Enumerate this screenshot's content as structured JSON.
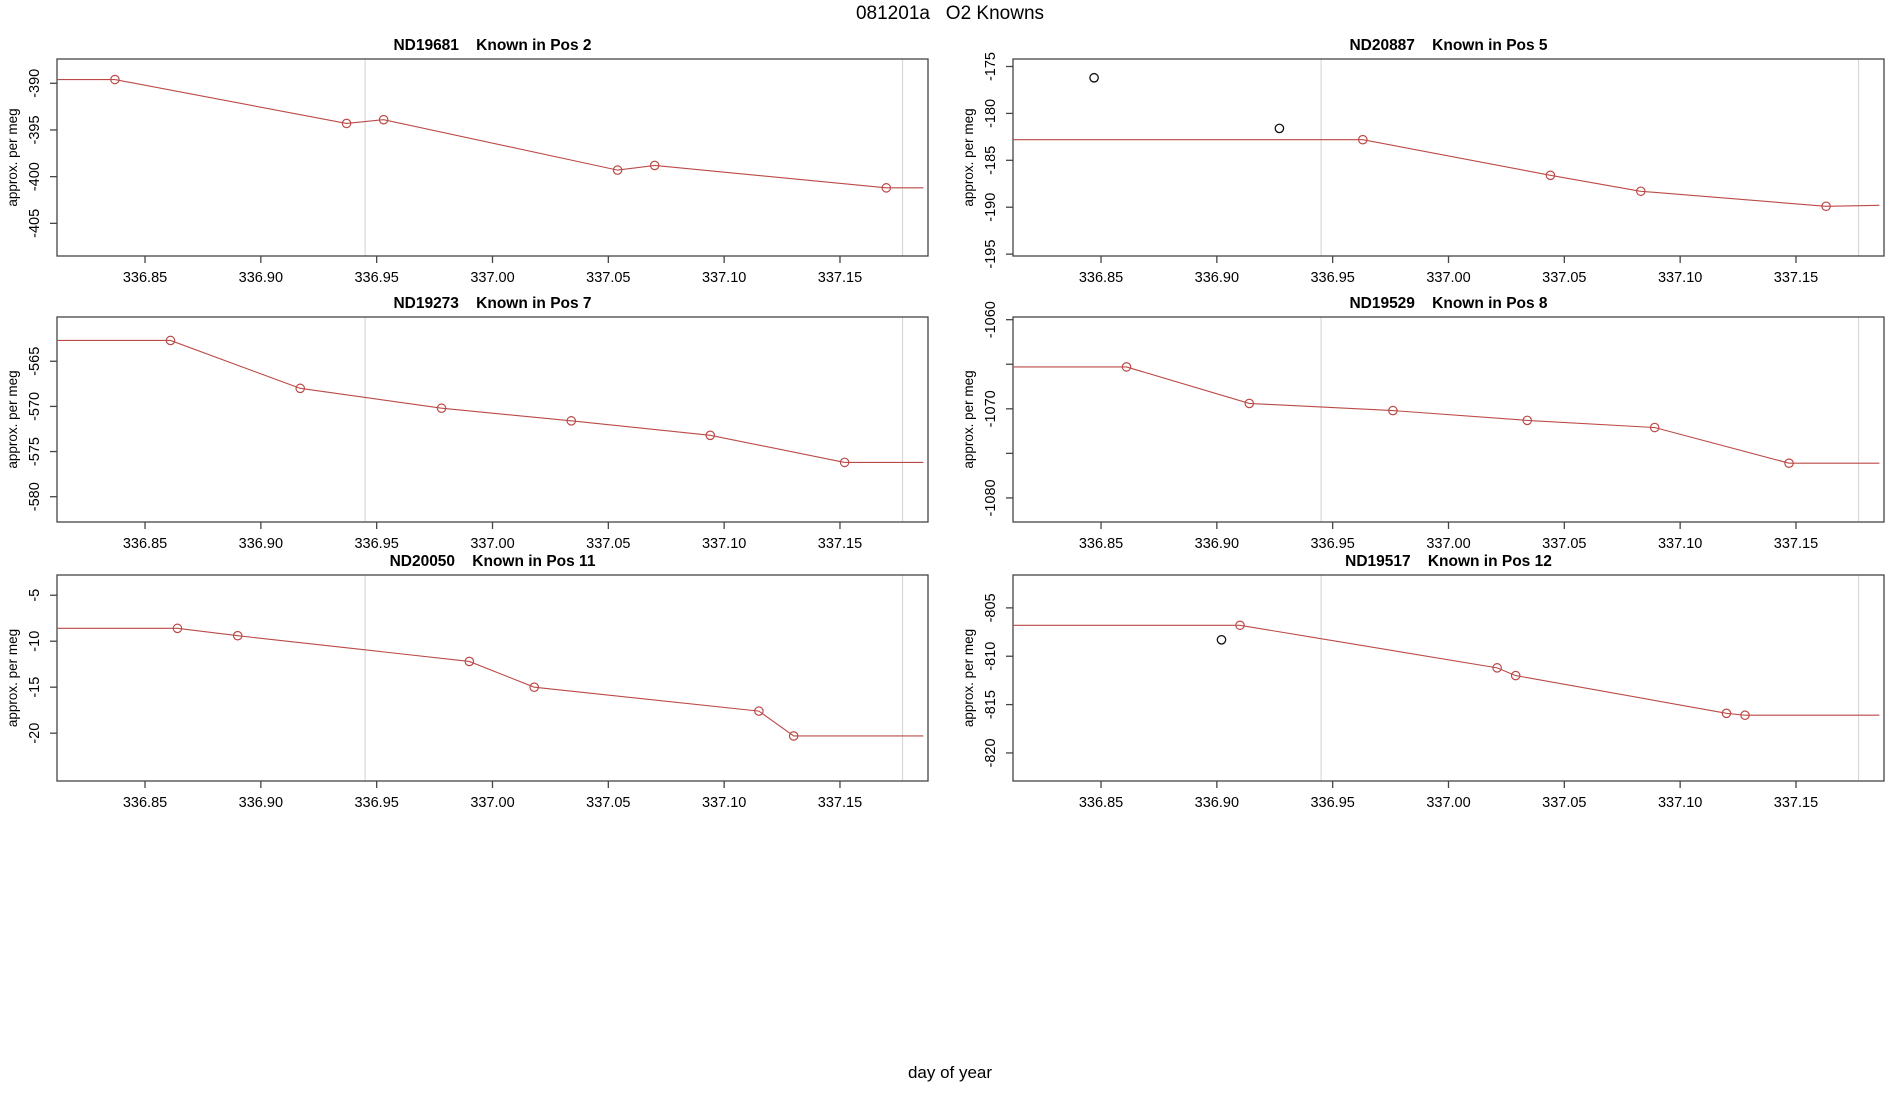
{
  "page": {
    "title": "081201a   O2 Knowns",
    "xlabel": "day of year"
  },
  "colors": {
    "series": "#bb4a47",
    "outlier": "#111111",
    "reference_line": "#d8d8d8",
    "axis": "#454545",
    "text": "#000000"
  },
  "chart_data": [
    {
      "type": "line",
      "title": "ND19681    Known in Pos 2",
      "ylabel": "approx. per meg",
      "xlim": [
        336.812,
        337.188
      ],
      "ylim": [
        -408.5,
        -387.4
      ],
      "xticks": {
        "values": [
          336.85,
          336.9,
          336.95,
          337.0,
          337.05,
          337.1,
          337.15
        ],
        "labels": [
          "336.85",
          "336.90",
          "336.95",
          "337.00",
          "337.05",
          "337.10",
          "337.15"
        ]
      },
      "yticks": {
        "values": [
          -390,
          -395,
          -400,
          -405
        ],
        "labels": [
          "-390",
          "-395",
          "-400",
          "-405"
        ]
      },
      "vlines": [
        336.945,
        337.177
      ],
      "line": [
        [
          336.812,
          -389.6
        ],
        [
          336.837,
          -389.6
        ],
        [
          336.937,
          -394.3
        ],
        [
          336.953,
          -393.9
        ],
        [
          337.054,
          -399.3
        ],
        [
          337.07,
          -398.8
        ],
        [
          337.17,
          -401.2
        ],
        [
          337.186,
          -401.2
        ]
      ],
      "markers": [
        [
          336.837,
          -389.6
        ],
        [
          336.937,
          -394.3
        ],
        [
          336.953,
          -393.9
        ],
        [
          337.054,
          -399.3
        ],
        [
          337.07,
          -398.8
        ],
        [
          337.17,
          -401.2
        ]
      ],
      "outliers": []
    },
    {
      "type": "line",
      "title": "ND20887    Known in Pos 5",
      "ylabel": "approx. per meg",
      "xlim": [
        336.812,
        337.188
      ],
      "ylim": [
        -195.2,
        -174.2
      ],
      "xticks": {
        "values": [
          336.85,
          336.9,
          336.95,
          337.0,
          337.05,
          337.1,
          337.15
        ],
        "labels": [
          "336.85",
          "336.90",
          "336.95",
          "337.00",
          "337.05",
          "337.10",
          "337.15"
        ]
      },
      "yticks": {
        "values": [
          -175,
          -180,
          -185,
          -190,
          -195
        ],
        "labels": [
          "-175",
          "-180",
          "-185",
          "-190",
          "-195"
        ]
      },
      "vlines": [
        336.945,
        337.177
      ],
      "line": [
        [
          336.812,
          -182.8
        ],
        [
          336.963,
          -182.8
        ],
        [
          337.044,
          -186.6
        ],
        [
          337.083,
          -188.3
        ],
        [
          337.163,
          -189.9
        ],
        [
          337.186,
          -189.8
        ]
      ],
      "markers": [
        [
          336.963,
          -182.8
        ],
        [
          337.044,
          -186.6
        ],
        [
          337.083,
          -188.3
        ],
        [
          337.163,
          -189.9
        ]
      ],
      "outliers": [
        [
          336.847,
          -176.2
        ],
        [
          336.927,
          -181.6
        ]
      ]
    },
    {
      "type": "line",
      "title": "ND19273    Known in Pos 7",
      "ylabel": "approx. per meg",
      "xlim": [
        336.812,
        337.188
      ],
      "ylim": [
        -582.8,
        -560.1
      ],
      "xticks": {
        "values": [
          336.85,
          336.9,
          336.95,
          337.0,
          337.05,
          337.1,
          337.15
        ],
        "labels": [
          "336.85",
          "336.90",
          "336.95",
          "337.00",
          "337.05",
          "337.10",
          "337.15"
        ]
      },
      "yticks": {
        "values": [
          -565,
          -570,
          -575,
          -580
        ],
        "labels": [
          "-565",
          "-570",
          "-575",
          "-580"
        ]
      },
      "vlines": [
        336.945,
        337.177
      ],
      "line": [
        [
          336.812,
          -562.7
        ],
        [
          336.861,
          -562.7
        ],
        [
          336.917,
          -568.0
        ],
        [
          336.978,
          -570.2
        ],
        [
          337.034,
          -571.6
        ],
        [
          337.094,
          -573.2
        ],
        [
          337.152,
          -576.2
        ],
        [
          337.186,
          -576.2
        ]
      ],
      "markers": [
        [
          336.861,
          -562.7
        ],
        [
          336.917,
          -568.0
        ],
        [
          336.978,
          -570.2
        ],
        [
          337.034,
          -571.6
        ],
        [
          337.094,
          -573.2
        ],
        [
          337.152,
          -576.2
        ]
      ],
      "outliers": []
    },
    {
      "type": "line",
      "title": "ND19529    Known in Pos 8",
      "ylabel": "approx. per meg",
      "xlim": [
        336.812,
        337.188
      ],
      "ylim": [
        -1082.7,
        -1059.7
      ],
      "xticks": {
        "values": [
          336.85,
          336.9,
          336.95,
          337.0,
          337.05,
          337.1,
          337.15
        ],
        "labels": [
          "336.85",
          "336.90",
          "336.95",
          "337.00",
          "337.05",
          "337.10",
          "337.15"
        ]
      },
      "yticks": {
        "values": [
          -1060,
          -1065,
          -1070,
          -1075,
          -1080
        ],
        "labels": [
          "-1060",
          "",
          "-1070",
          "",
          "-1080"
        ]
      },
      "vlines": [
        336.945,
        337.177
      ],
      "line": [
        [
          336.812,
          -1065.3
        ],
        [
          336.861,
          -1065.3
        ],
        [
          336.914,
          -1069.4
        ],
        [
          336.976,
          -1070.2
        ],
        [
          337.034,
          -1071.3
        ],
        [
          337.089,
          -1072.1
        ],
        [
          337.147,
          -1076.1
        ],
        [
          337.186,
          -1076.1
        ]
      ],
      "markers": [
        [
          336.861,
          -1065.3
        ],
        [
          336.914,
          -1069.4
        ],
        [
          336.976,
          -1070.2
        ],
        [
          337.034,
          -1071.3
        ],
        [
          337.089,
          -1072.1
        ],
        [
          337.147,
          -1076.1
        ]
      ],
      "outliers": []
    },
    {
      "type": "line",
      "title": "ND20050    Known in Pos 11",
      "ylabel": "approx. per meg",
      "xlim": [
        336.812,
        337.188
      ],
      "ylim": [
        -25.2,
        -2.8
      ],
      "xticks": {
        "values": [
          336.85,
          336.9,
          336.95,
          337.0,
          337.05,
          337.1,
          337.15
        ],
        "labels": [
          "336.85",
          "336.90",
          "336.95",
          "337.00",
          "337.05",
          "337.10",
          "337.15"
        ]
      },
      "yticks": {
        "values": [
          -5,
          -10,
          -15,
          -20
        ],
        "labels": [
          "-5",
          "-10",
          "-15",
          "-20"
        ]
      },
      "vlines": [
        336.945,
        337.177
      ],
      "line": [
        [
          336.812,
          -8.6
        ],
        [
          336.864,
          -8.6
        ],
        [
          336.89,
          -9.4
        ],
        [
          336.99,
          -12.2
        ],
        [
          337.018,
          -15.0
        ],
        [
          337.115,
          -17.6
        ],
        [
          337.13,
          -20.3
        ],
        [
          337.186,
          -20.3
        ]
      ],
      "markers": [
        [
          336.864,
          -8.6
        ],
        [
          336.89,
          -9.4
        ],
        [
          336.99,
          -12.2
        ],
        [
          337.018,
          -15.0
        ],
        [
          337.115,
          -17.6
        ],
        [
          337.13,
          -20.3
        ]
      ],
      "outliers": []
    },
    {
      "type": "line",
      "title": "ND19517    Known in Pos 12",
      "ylabel": "approx. per meg",
      "xlim": [
        336.812,
        337.188
      ],
      "ylim": [
        -822.9,
        -801.6
      ],
      "xticks": {
        "values": [
          336.85,
          336.9,
          336.95,
          337.0,
          337.05,
          337.1,
          337.15
        ],
        "labels": [
          "336.85",
          "336.90",
          "336.95",
          "337.00",
          "337.05",
          "337.10",
          "337.15"
        ]
      },
      "yticks": {
        "values": [
          -805,
          -810,
          -815,
          -820
        ],
        "labels": [
          "-805",
          "-810",
          "-815",
          "-820"
        ]
      },
      "vlines": [
        336.945,
        337.177
      ],
      "line": [
        [
          336.812,
          -806.8
        ],
        [
          336.91,
          -806.8
        ],
        [
          337.021,
          -811.2
        ],
        [
          337.029,
          -812.0
        ],
        [
          337.12,
          -815.9
        ],
        [
          337.128,
          -816.1
        ],
        [
          337.186,
          -816.1
        ]
      ],
      "markers": [
        [
          336.91,
          -806.8
        ],
        [
          337.021,
          -811.2
        ],
        [
          337.029,
          -812.0
        ],
        [
          337.12,
          -815.9
        ],
        [
          337.128,
          -816.1
        ]
      ],
      "outliers": [
        [
          336.902,
          -808.3
        ]
      ]
    }
  ]
}
